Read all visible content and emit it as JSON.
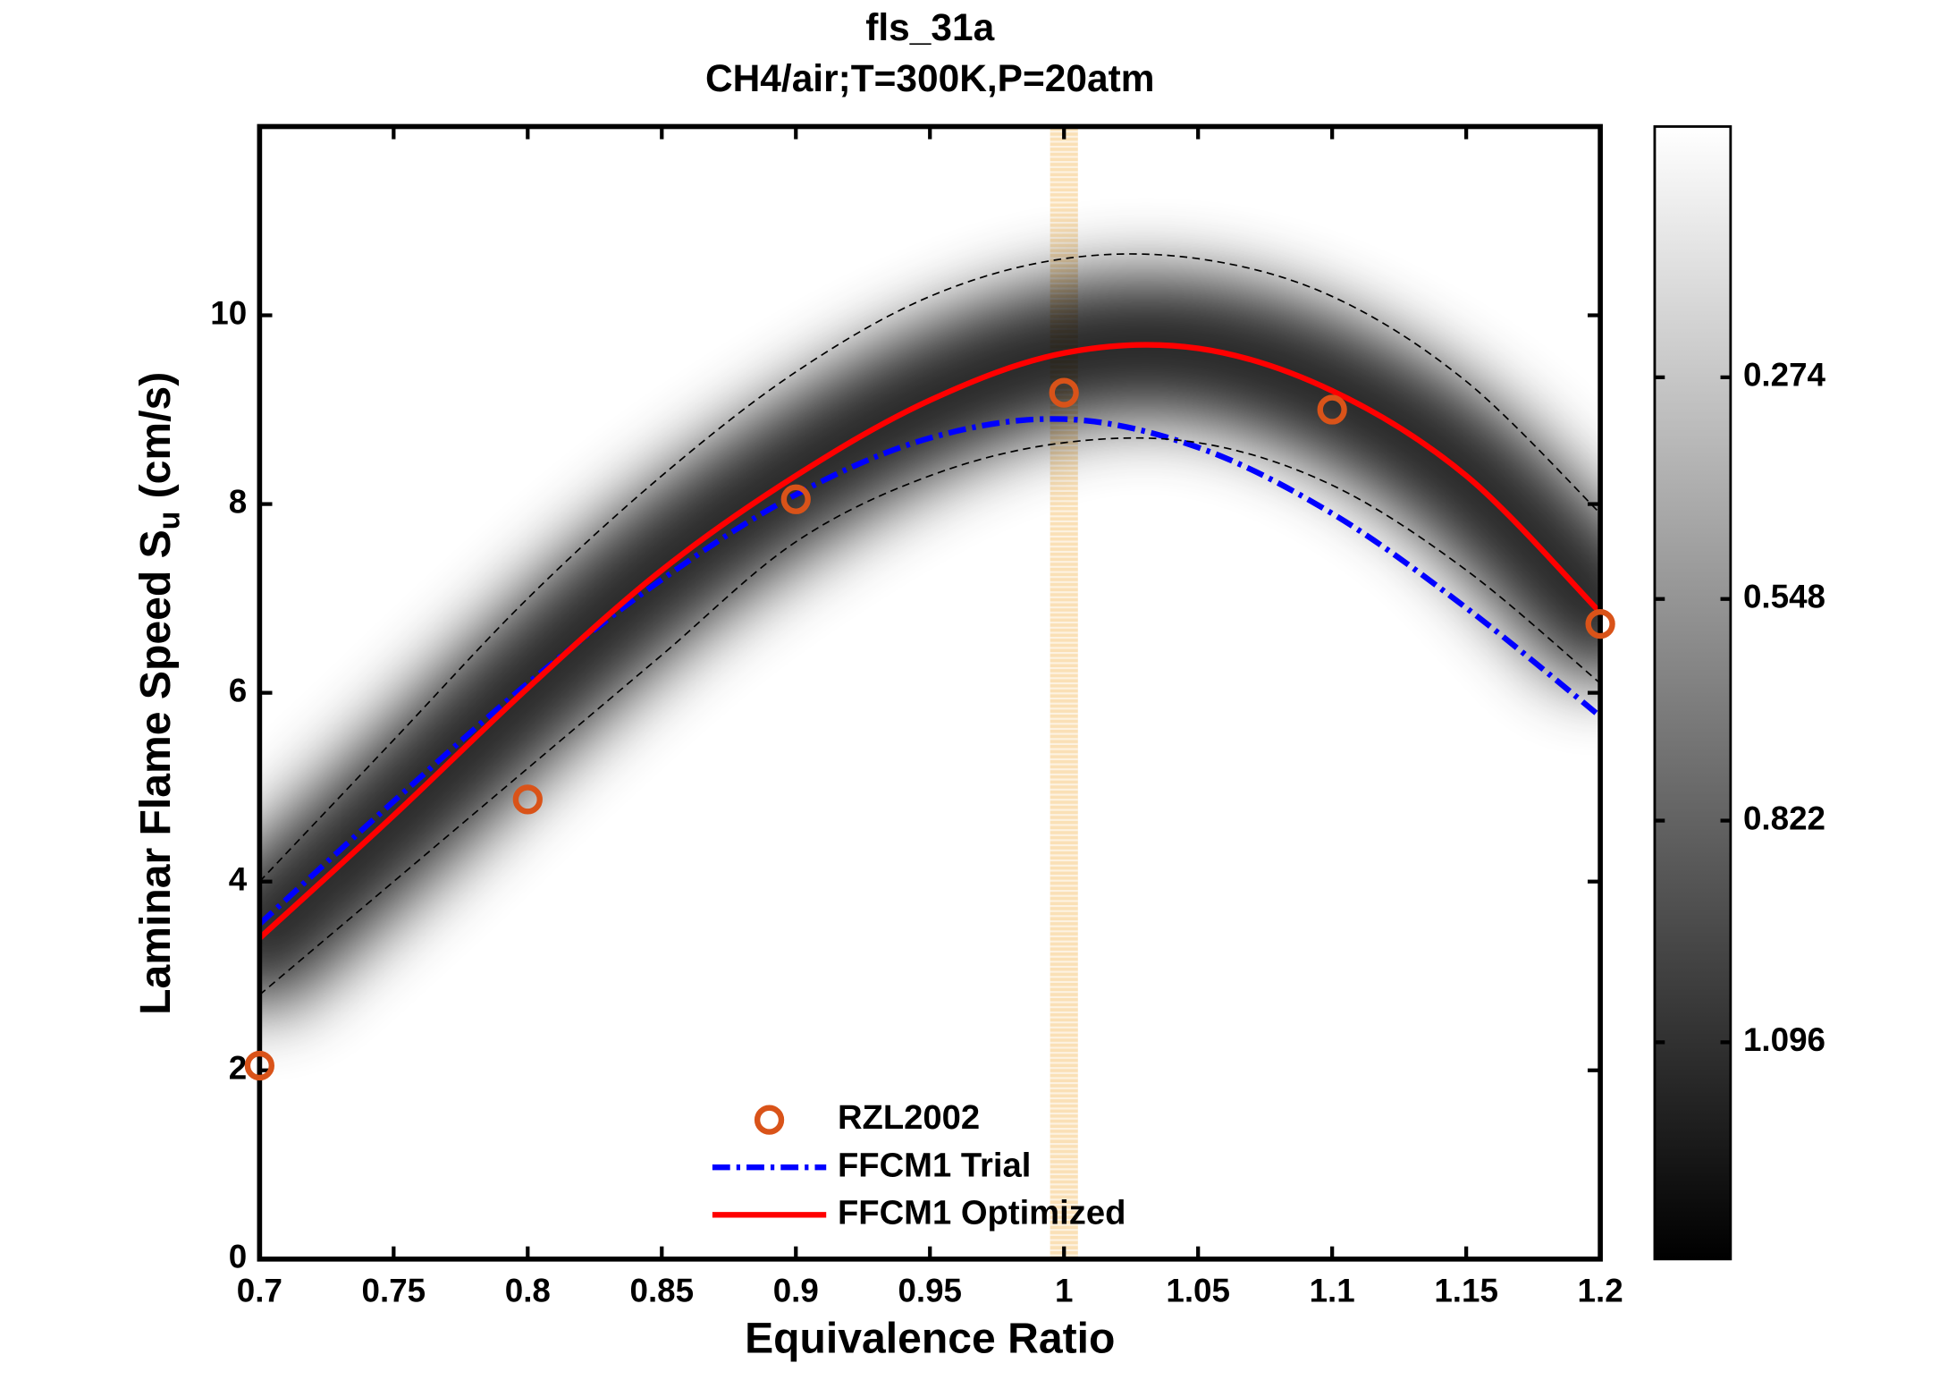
{
  "chart_data": {
    "type": "line",
    "title": "fls_31a",
    "subtitle": "CH4/air;T=300K,P=20atm",
    "xlabel": "Equivalence Ratio",
    "ylabel": "Laminar Flame Speed S",
    "ylabel_sub": "u",
    "ylabel_unit": "(cm/s)",
    "xlim": [
      0.7,
      1.2
    ],
    "xticks": [
      0.7,
      0.75,
      0.8,
      0.85,
      0.9,
      0.95,
      1,
      1.05,
      1.1,
      1.15,
      1.2
    ],
    "ylim": [
      0,
      12
    ],
    "yticks": [
      0,
      2,
      4,
      6,
      8,
      10
    ],
    "legend": "lower center",
    "highlight_x": 1,
    "highlight_color": "#f5c67a",
    "series": [
      {
        "name": "RZL2002",
        "type": "scatter",
        "color": "#d95319",
        "x": [
          0.7,
          0.8,
          0.9,
          1.0,
          1.1,
          1.2
        ],
        "values": [
          2.05,
          4.87,
          8.05,
          9.18,
          9.0,
          6.73
        ]
      },
      {
        "name": "FFCM1 Trial",
        "type": "line",
        "style": "dashdot",
        "color": "#0000ff",
        "x": [
          0.7,
          0.75,
          0.8,
          0.85,
          0.9,
          0.95,
          1.0,
          1.05,
          1.1,
          1.15,
          1.2
        ],
        "values": [
          3.55,
          4.85,
          6.1,
          7.2,
          8.1,
          8.7,
          8.9,
          8.6,
          7.9,
          6.9,
          5.75
        ]
      },
      {
        "name": "FFCM1 Optimized",
        "type": "line",
        "style": "solid",
        "color": "#ff0000",
        "density": true,
        "x": [
          0.7,
          0.75,
          0.8,
          0.85,
          0.9,
          0.95,
          1.0,
          1.05,
          1.1,
          1.15,
          1.2
        ],
        "values": [
          3.4,
          4.7,
          6.05,
          7.3,
          8.3,
          9.1,
          9.6,
          9.65,
          9.2,
          8.3,
          6.85
        ]
      },
      {
        "type": "line",
        "style": "dashed",
        "color": "#000000",
        "x": [
          0.7,
          0.75,
          0.8,
          0.85,
          0.9,
          0.95,
          1.0,
          1.05,
          1.1,
          1.15,
          1.2
        ],
        "values": [
          4.0,
          5.5,
          7.0,
          8.3,
          9.4,
          10.2,
          10.6,
          10.6,
          10.2,
          9.3,
          7.9
        ]
      },
      {
        "type": "line",
        "style": "dashed",
        "color": "#000000",
        "x": [
          0.7,
          0.75,
          0.8,
          0.85,
          0.9,
          0.95,
          1.0,
          1.05,
          1.1,
          1.15,
          1.2
        ],
        "values": [
          2.8,
          4.0,
          5.2,
          6.4,
          7.6,
          8.3,
          8.65,
          8.65,
          8.2,
          7.3,
          6.1
        ]
      }
    ],
    "colorbar": {
      "clim": [
        -0.036,
        1.364
      ],
      "ticks": [
        0.274,
        0.548,
        0.822,
        1.096
      ]
    }
  }
}
